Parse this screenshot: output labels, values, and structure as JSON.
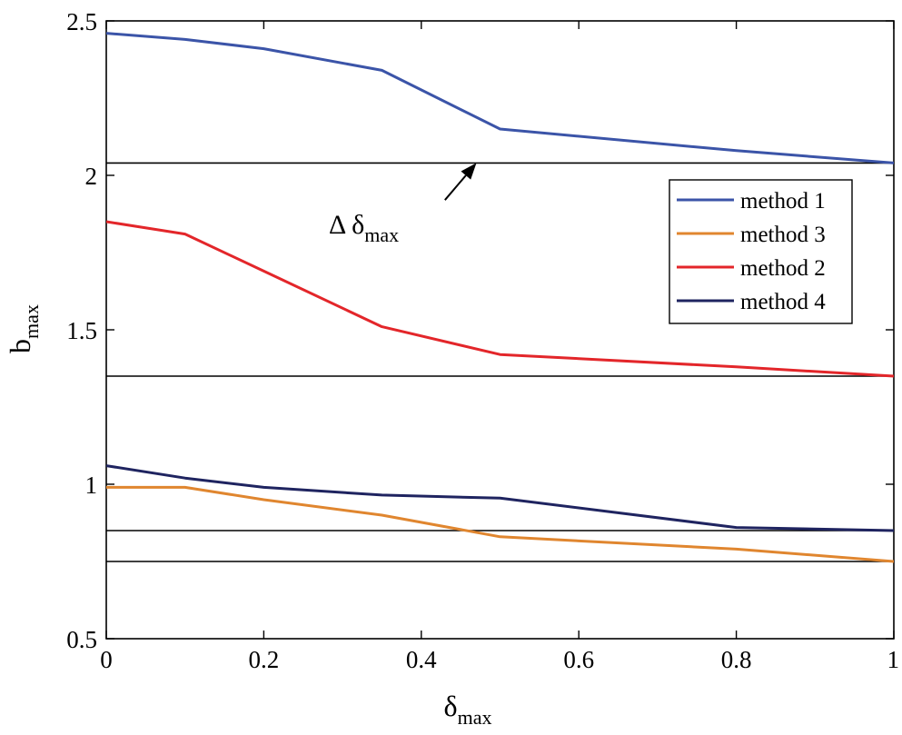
{
  "chart_data": {
    "type": "line",
    "title": "",
    "xlabel": {
      "base": "δ",
      "sub": "max"
    },
    "ylabel": {
      "base": "b",
      "sub": "max"
    },
    "xlim": [
      0,
      1
    ],
    "ylim": [
      0.5,
      2.5
    ],
    "xticks": [
      0,
      0.2,
      0.4,
      0.6,
      0.8,
      1
    ],
    "xtick_labels": [
      "0",
      "0.2",
      "0.4",
      "0.6",
      "0.8",
      "1"
    ],
    "yticks": [
      0.5,
      1,
      1.5,
      2,
      2.5
    ],
    "ytick_labels": [
      "0.5",
      "1",
      "1.5",
      "2",
      "2.5"
    ],
    "grid": false,
    "legend_position": "top-right",
    "series": [
      {
        "name": "method 1",
        "color": "#3b54a8",
        "x": [
          0,
          0.1,
          0.2,
          0.35,
          0.5,
          0.8,
          1
        ],
        "y": [
          2.46,
          2.44,
          2.41,
          2.34,
          2.15,
          2.08,
          2.04
        ]
      },
      {
        "name": "method 3",
        "color": "#e0862f",
        "x": [
          0,
          0.1,
          0.2,
          0.35,
          0.5,
          0.8,
          1
        ],
        "y": [
          0.99,
          0.99,
          0.95,
          0.9,
          0.83,
          0.79,
          0.75
        ]
      },
      {
        "name": "method 2",
        "color": "#e3262a",
        "x": [
          0,
          0.1,
          0.2,
          0.35,
          0.5,
          0.8,
          1
        ],
        "y": [
          1.85,
          1.81,
          1.69,
          1.51,
          1.42,
          1.38,
          1.35
        ]
      },
      {
        "name": "method 4",
        "color": "#1f2460",
        "x": [
          0,
          0.1,
          0.2,
          0.35,
          0.5,
          0.8,
          1
        ],
        "y": [
          1.06,
          1.02,
          0.99,
          0.965,
          0.955,
          0.86,
          0.85
        ]
      }
    ],
    "reference_lines": [
      2.04,
      1.35,
      0.85,
      0.75
    ],
    "annotation": {
      "text": "Δ δ",
      "sub": "max",
      "arrow_to": {
        "x": 0.47,
        "y": 2.04
      },
      "arrow_from": {
        "x": 0.43,
        "y": 1.92
      }
    }
  }
}
